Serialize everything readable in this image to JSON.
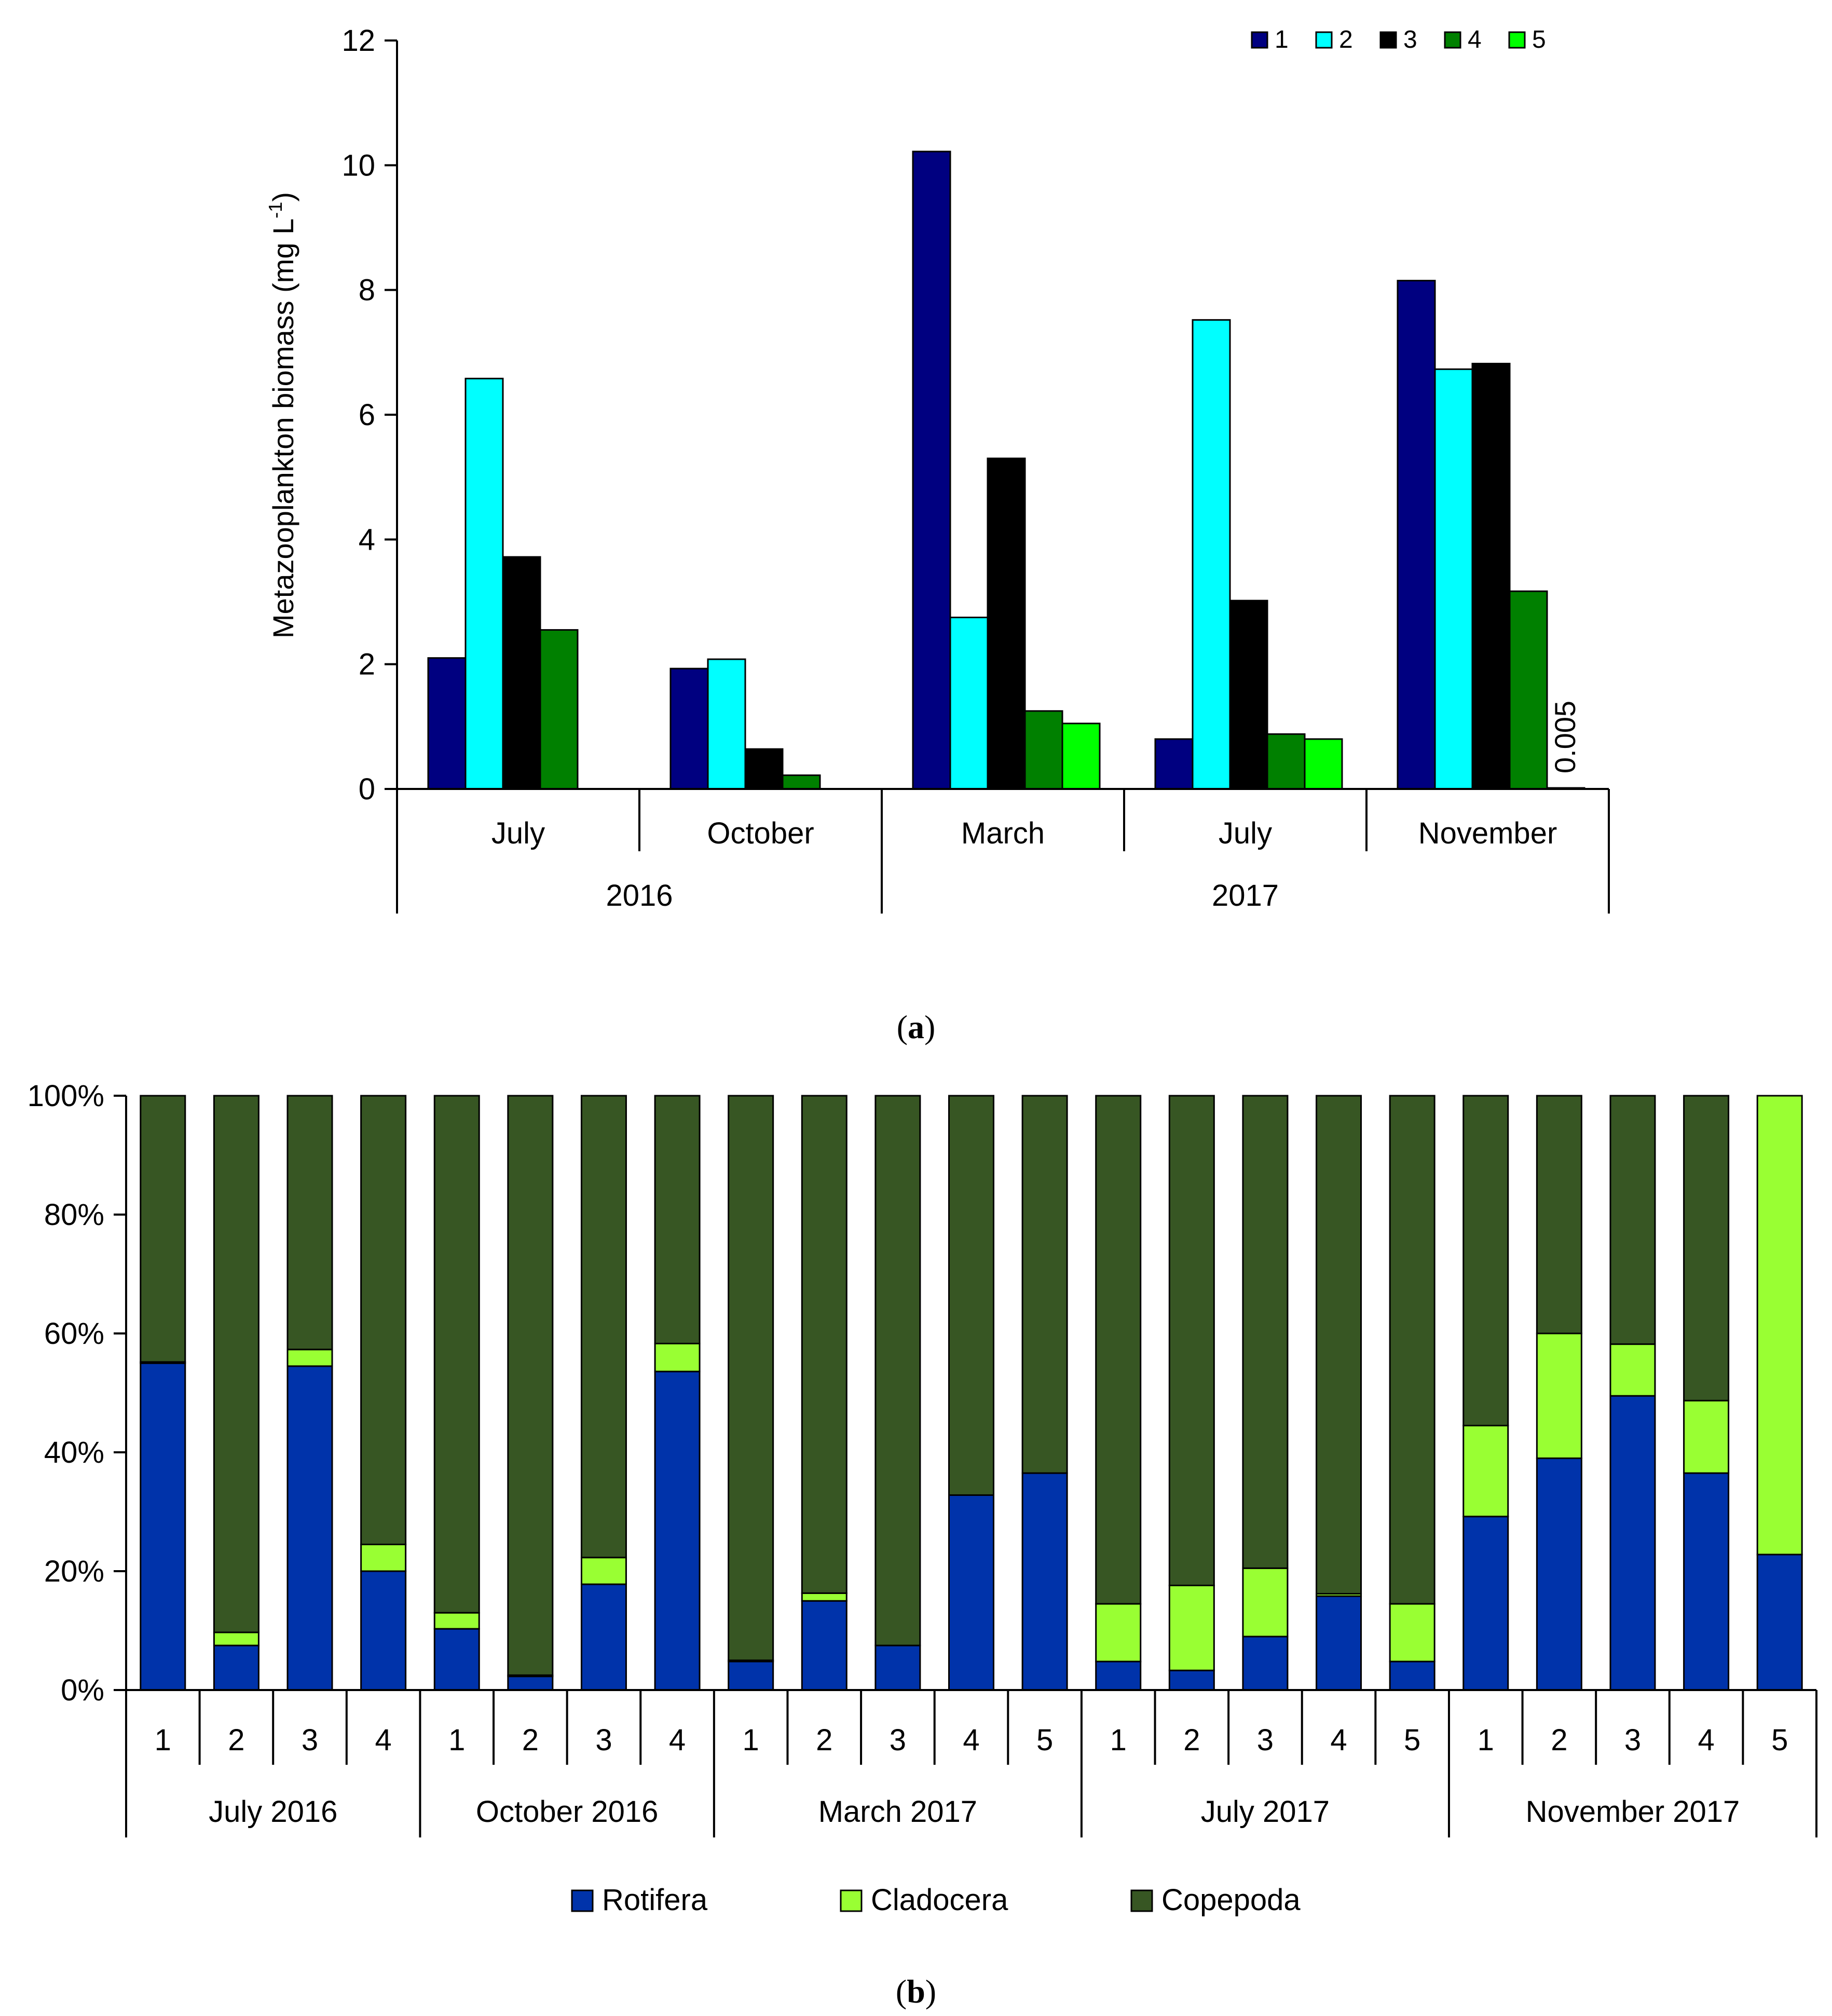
{
  "chart_data": [
    {
      "type": "bar",
      "panel_label": "a",
      "ylabel": "Metazooplankton biomass (mg L",
      "ylabel_sup": "-1",
      "ylabel_end": ")",
      "ylim": [
        0,
        12
      ],
      "yticks": [
        "0",
        "2",
        "4",
        "6",
        "8",
        "10",
        "12"
      ],
      "categories": [
        "July",
        "October",
        "March",
        "July",
        "November"
      ],
      "groups": [
        {
          "label": "2016",
          "span": [
            0,
            1
          ]
        },
        {
          "label": "2017",
          "span": [
            2,
            4
          ]
        }
      ],
      "legend": [
        "1",
        "2",
        "3",
        "4",
        "5"
      ],
      "series_colors": [
        "#000080",
        "#00FFFF",
        "#000000",
        "#008000",
        "#00FF00"
      ],
      "values": [
        [
          2.1,
          6.58,
          3.72,
          2.55,
          null
        ],
        [
          1.93,
          2.08,
          0.64,
          0.22,
          null
        ],
        [
          10.22,
          2.75,
          5.3,
          1.25,
          1.05
        ],
        [
          0.8,
          7.52,
          3.02,
          0.88,
          0.8
        ],
        [
          8.15,
          6.73,
          6.82,
          3.17,
          0.005
        ]
      ],
      "annotation": "0.005"
    },
    {
      "type": "bar",
      "stacked": true,
      "panel_label": "b",
      "ylim": [
        0,
        100
      ],
      "yticks": [
        "0%",
        "20%",
        "40%",
        "60%",
        "80%",
        "100%"
      ],
      "groups": [
        {
          "label": "July 2016",
          "stations": [
            "1",
            "2",
            "3",
            "4"
          ]
        },
        {
          "label": "October 2016",
          "stations": [
            "1",
            "2",
            "3",
            "4"
          ]
        },
        {
          "label": "March 2017",
          "stations": [
            "1",
            "2",
            "3",
            "4",
            "5"
          ]
        },
        {
          "label": "July 2017",
          "stations": [
            "1",
            "2",
            "3",
            "4",
            "5"
          ]
        },
        {
          "label": "November 2017",
          "stations": [
            "1",
            "2",
            "3",
            "4",
            "5"
          ]
        }
      ],
      "series": [
        {
          "name": "Rotifera",
          "color": "#0033AA",
          "values": [
            55,
            7.5,
            54.5,
            20,
            10.3,
            2.3,
            17.8,
            53.6,
            4.8,
            15,
            7.5,
            32.8,
            36.5,
            4.8,
            3.3,
            9,
            15.8,
            4.8,
            29.2,
            39,
            49.5,
            36.5,
            22.8
          ]
        },
        {
          "name": "Cladocera",
          "color": "#99FF33",
          "values": [
            0.2,
            2.2,
            2.8,
            4.5,
            2.7,
            0.2,
            4.5,
            4.7,
            0.2,
            1.3,
            0,
            0,
            0,
            9.7,
            14.3,
            11.5,
            0.4,
            9.7,
            15.3,
            21,
            8.7,
            12.2,
            77.2
          ]
        },
        {
          "name": "Copepoda",
          "color": "#375623",
          "values": [
            44.8,
            90.3,
            42.7,
            75.5,
            87,
            97.5,
            77.7,
            41.7,
            95,
            83.7,
            92.5,
            67.2,
            63.5,
            85.5,
            82.4,
            79.5,
            83.8,
            85.5,
            55.5,
            40,
            41.8,
            51.3,
            0
          ]
        }
      ],
      "legend": [
        "Rotifera",
        "Cladocera",
        "Copepoda"
      ]
    }
  ]
}
